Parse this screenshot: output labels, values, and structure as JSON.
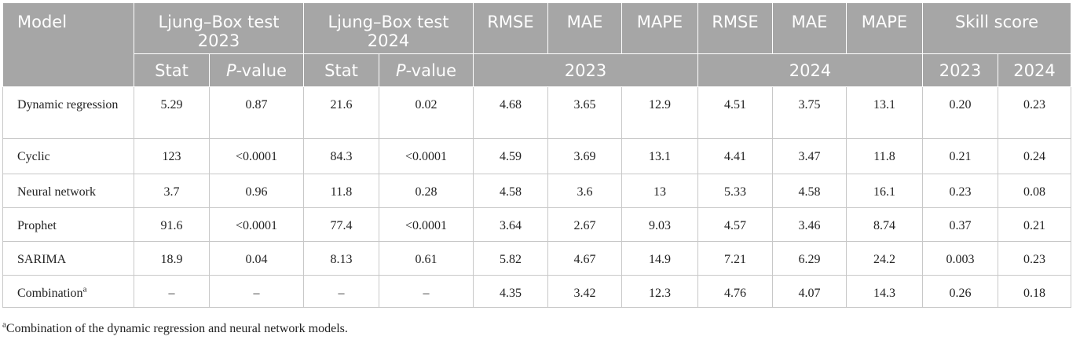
{
  "header": {
    "model": "Model",
    "lb2023_line1": "Ljung–Box test",
    "lb2023_line2": "2023",
    "lb2024_line1": "Ljung–Box test",
    "lb2024_line2": "2024",
    "rmse": "RMSE",
    "mae": "MAE",
    "mape": "MAPE",
    "skill": "Skill score",
    "stat": "Stat",
    "p_italic": "P",
    "p_rest": "-value",
    "year2023": "2023",
    "year2024": "2024"
  },
  "rows": [
    {
      "model": "Dynamic regression",
      "model_sup": "",
      "values": [
        "5.29",
        "0.87",
        "21.6",
        "0.02",
        "4.68",
        "3.65",
        "12.9",
        "4.51",
        "3.75",
        "13.1",
        "0.20",
        "0.23"
      ]
    },
    {
      "model": "Cyclic",
      "model_sup": "",
      "values": [
        "123",
        "<0.0001",
        "84.3",
        "<0.0001",
        "4.59",
        "3.69",
        "13.1",
        "4.41",
        "3.47",
        "11.8",
        "0.21",
        "0.24"
      ]
    },
    {
      "model": "Neural network",
      "model_sup": "",
      "values": [
        "3.7",
        "0.96",
        "11.8",
        "0.28",
        "4.58",
        "3.6",
        "13",
        "5.33",
        "4.58",
        "16.1",
        "0.23",
        "0.08"
      ]
    },
    {
      "model": "Prophet",
      "model_sup": "",
      "values": [
        "91.6",
        "<0.0001",
        "77.4",
        "<0.0001",
        "3.64",
        "2.67",
        "9.03",
        "4.57",
        "3.46",
        "8.74",
        "0.37",
        "0.21"
      ]
    },
    {
      "model": "SARIMA",
      "model_sup": "",
      "values": [
        "18.9",
        "0.04",
        "8.13",
        "0.61",
        "5.82",
        "4.67",
        "14.9",
        "7.21",
        "6.29",
        "24.2",
        "0.003",
        "0.23"
      ]
    },
    {
      "model": "Combination",
      "model_sup": "a",
      "values": [
        "–",
        "–",
        "–",
        "–",
        "4.35",
        "3.42",
        "12.3",
        "4.76",
        "4.07",
        "14.3",
        "0.26",
        "0.18"
      ]
    }
  ],
  "footnote": {
    "marker": "a",
    "text": "Combination of the dynamic regression and neural network models."
  }
}
